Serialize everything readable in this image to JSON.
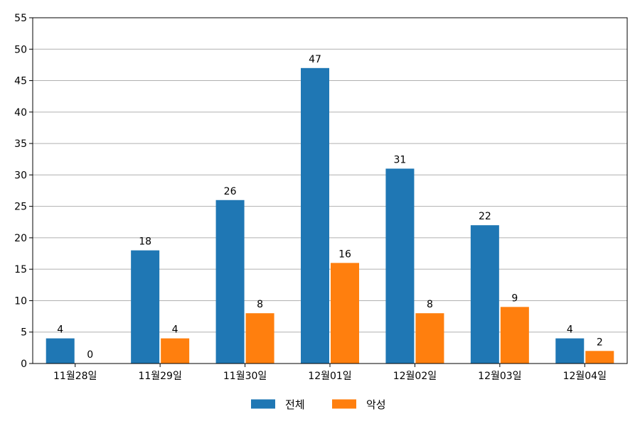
{
  "chart_data": {
    "type": "bar",
    "categories": [
      "11월28일",
      "11월29일",
      "11월30일",
      "12월01일",
      "12월02일",
      "12월03일",
      "12월04일"
    ],
    "series": [
      {
        "name": "전체",
        "color": "#1f77b4",
        "values": [
          4,
          18,
          26,
          47,
          31,
          22,
          4
        ]
      },
      {
        "name": "악성",
        "color": "#ff7f0e",
        "values": [
          0,
          4,
          8,
          16,
          8,
          9,
          2
        ]
      }
    ],
    "ylim": [
      0,
      55
    ],
    "yticks": [
      0,
      5,
      10,
      15,
      20,
      25,
      30,
      35,
      40,
      45,
      50,
      55
    ],
    "grid": true,
    "legend": "bottom-center",
    "data_labels": true
  }
}
